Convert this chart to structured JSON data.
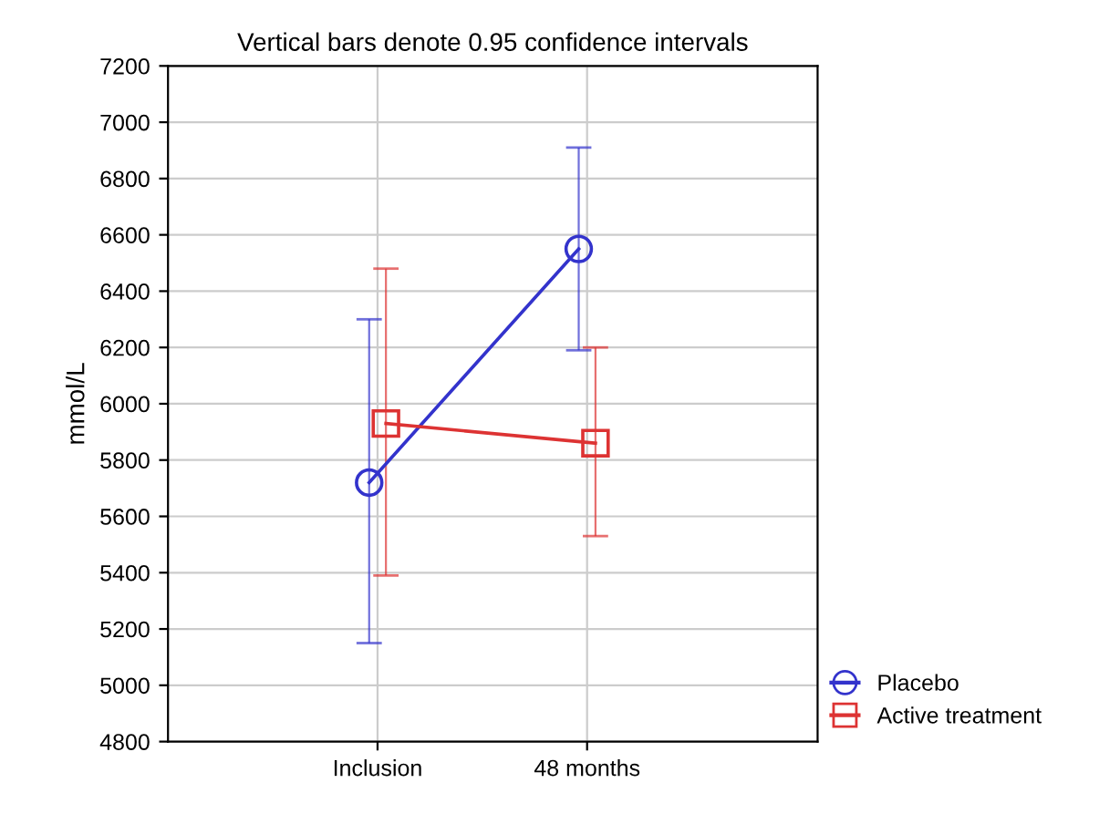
{
  "chart_data": {
    "type": "line",
    "title": "Vertical bars denote 0.95 confidence intervals",
    "ylabel": "mmol/L",
    "categories": [
      "Inclusion",
      "48 months"
    ],
    "series": [
      {
        "name": "Placebo",
        "color": "#3333cc",
        "marker": "circle",
        "values": [
          5720,
          6550
        ],
        "errors": [
          [
            5150,
            6300
          ],
          [
            6190,
            6910
          ]
        ]
      },
      {
        "name": "Active treatment",
        "color": "#dd3333",
        "marker": "square",
        "values": [
          5930,
          5860
        ],
        "errors": [
          [
            5390,
            6480
          ],
          [
            5530,
            6200
          ]
        ]
      }
    ],
    "ylim": [
      4800,
      7200
    ],
    "yticks": [
      4800,
      5000,
      5200,
      5400,
      5600,
      5800,
      6000,
      6200,
      6400,
      6600,
      6800,
      7000,
      7200
    ],
    "grid": true,
    "legend": "bottom right",
    "line_style": "solid"
  }
}
